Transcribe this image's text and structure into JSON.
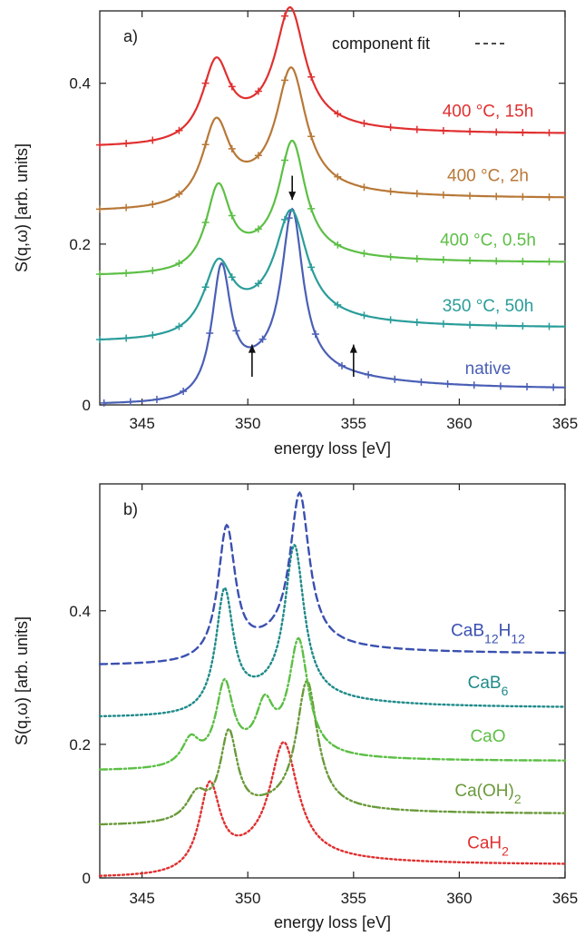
{
  "chart_data": [
    {
      "type": "line",
      "panel_label": "a)",
      "xlabel": "energy loss [eV]",
      "ylabel": "S(q,ω)  [arb. units]",
      "xlim": [
        343,
        365
      ],
      "ylim": [
        0,
        0.49
      ],
      "xticks": [
        "345",
        "350",
        "355",
        "360",
        "365"
      ],
      "yticks": [
        "0",
        "0.2",
        "0.4"
      ],
      "legend_text": "component fit",
      "legend_position": "top-right",
      "series": [
        {
          "name": "native",
          "color": "#4a5fb5",
          "style": "solid",
          "markers": true,
          "offset": 0.0,
          "peaks": [
            [
              348.75,
              0.16,
              0.55
            ],
            [
              352.1,
              0.195,
              0.6
            ]
          ],
          "edge": [
            349.5,
            0.045
          ],
          "tail": 0.02,
          "x0": 343.2
        },
        {
          "name": "350 °C, 50h",
          "color": "#2a9d9a",
          "style": "solid",
          "markers": true,
          "offset": 0.078,
          "peaks": [
            [
              348.6,
              0.09,
              0.85
            ],
            [
              352.05,
              0.13,
              0.9
            ]
          ],
          "edge": [
            349.5,
            0.03
          ],
          "tail": 0.018,
          "x0": 343.0
        },
        {
          "name": "400 °C, 0.5h",
          "color": "#5cbf45",
          "style": "solid",
          "markers": true,
          "offset": 0.16,
          "peaks": [
            [
              348.6,
              0.105,
              0.7
            ],
            [
              352.1,
              0.14,
              0.75
            ]
          ],
          "edge": [
            349.5,
            0.025
          ],
          "tail": 0.017,
          "x0": 343.0
        },
        {
          "name": "400 °C, 2h",
          "color": "#b87838",
          "style": "solid",
          "markers": true,
          "offset": 0.24,
          "peaks": [
            [
              348.5,
              0.105,
              0.8
            ],
            [
              352.05,
              0.15,
              0.85
            ]
          ],
          "edge": [
            349.5,
            0.025
          ],
          "tail": 0.017,
          "x0": 343.0
        },
        {
          "name": "400 °C, 15h",
          "color": "#e03030",
          "style": "solid",
          "markers": true,
          "offset": 0.32,
          "peaks": [
            [
              348.5,
              0.1,
              0.8
            ],
            [
              352.0,
              0.145,
              0.85
            ]
          ],
          "edge": [
            349.5,
            0.025
          ],
          "tail": 0.017,
          "x0": 343.0
        }
      ],
      "arrows": [
        {
          "x": 352.1,
          "y_from": 0.285,
          "y_to": 0.255,
          "direction": "down"
        },
        {
          "x": 350.2,
          "y_from": 0.035,
          "y_to": 0.075,
          "direction": "up"
        },
        {
          "x": 355.0,
          "y_from": 0.035,
          "y_to": 0.075,
          "direction": "up"
        }
      ]
    },
    {
      "type": "line",
      "panel_label": "b)",
      "xlabel": "energy loss [eV]",
      "ylabel": "S(q,ω)  [arb. units]",
      "xlim": [
        343,
        365
      ],
      "ylim": [
        0,
        0.59
      ],
      "xticks": [
        "345",
        "350",
        "355",
        "360",
        "365"
      ],
      "yticks": [
        "0",
        "0.2",
        "0.4"
      ],
      "series": [
        {
          "name": "CaH",
          "sub": "2",
          "color": "#e03030",
          "style": "dotted",
          "offset": 0.0,
          "peaks": [
            [
              348.2,
              0.13,
              0.6
            ],
            [
              351.7,
              0.17,
              0.8
            ]
          ],
          "edge": [
            349.0,
            0.03
          ],
          "tail": 0.02,
          "x0": 343.0
        },
        {
          "name": "Ca(OH)",
          "sub": "2",
          "color": "#6a9a3a",
          "style": "dashdotdot",
          "offset": 0.078,
          "peaks": [
            [
              347.6,
              0.04,
              0.6
            ],
            [
              349.1,
              0.13,
              0.5
            ],
            [
              352.8,
              0.19,
              0.6
            ]
          ],
          "edge": [
            350.0,
            0.025
          ],
          "tail": 0.018,
          "x0": 343.0
        },
        {
          "name": "CaO",
          "color": "#5cbf45",
          "style": "dashdot",
          "offset": 0.16,
          "peaks": [
            [
              347.3,
              0.04,
              0.5
            ],
            [
              348.9,
              0.12,
              0.5
            ],
            [
              350.8,
              0.07,
              0.5
            ],
            [
              352.4,
              0.17,
              0.55
            ]
          ],
          "edge": [
            349.5,
            0.02
          ],
          "tail": 0.015,
          "x0": 343.0
        },
        {
          "name": "CaB",
          "sub": "6",
          "color": "#1f8a8a",
          "style": "dotted",
          "offset": 0.24,
          "peaks": [
            [
              348.9,
              0.18,
              0.5
            ],
            [
              352.2,
              0.225,
              0.55
            ]
          ],
          "edge": [
            349.5,
            0.03
          ],
          "tail": 0.015,
          "x0": 343.0
        },
        {
          "name": "CaB",
          "sub": "12",
          "name2": "H",
          "sub2": "12",
          "color": "#3a50b0",
          "style": "dashed",
          "offset": 0.318,
          "peaks": [
            [
              349.0,
              0.2,
              0.5
            ],
            [
              352.45,
              0.225,
              0.55
            ]
          ],
          "edge": [
            350.0,
            0.03
          ],
          "tail": 0.018,
          "x0": 343.0
        }
      ]
    }
  ]
}
